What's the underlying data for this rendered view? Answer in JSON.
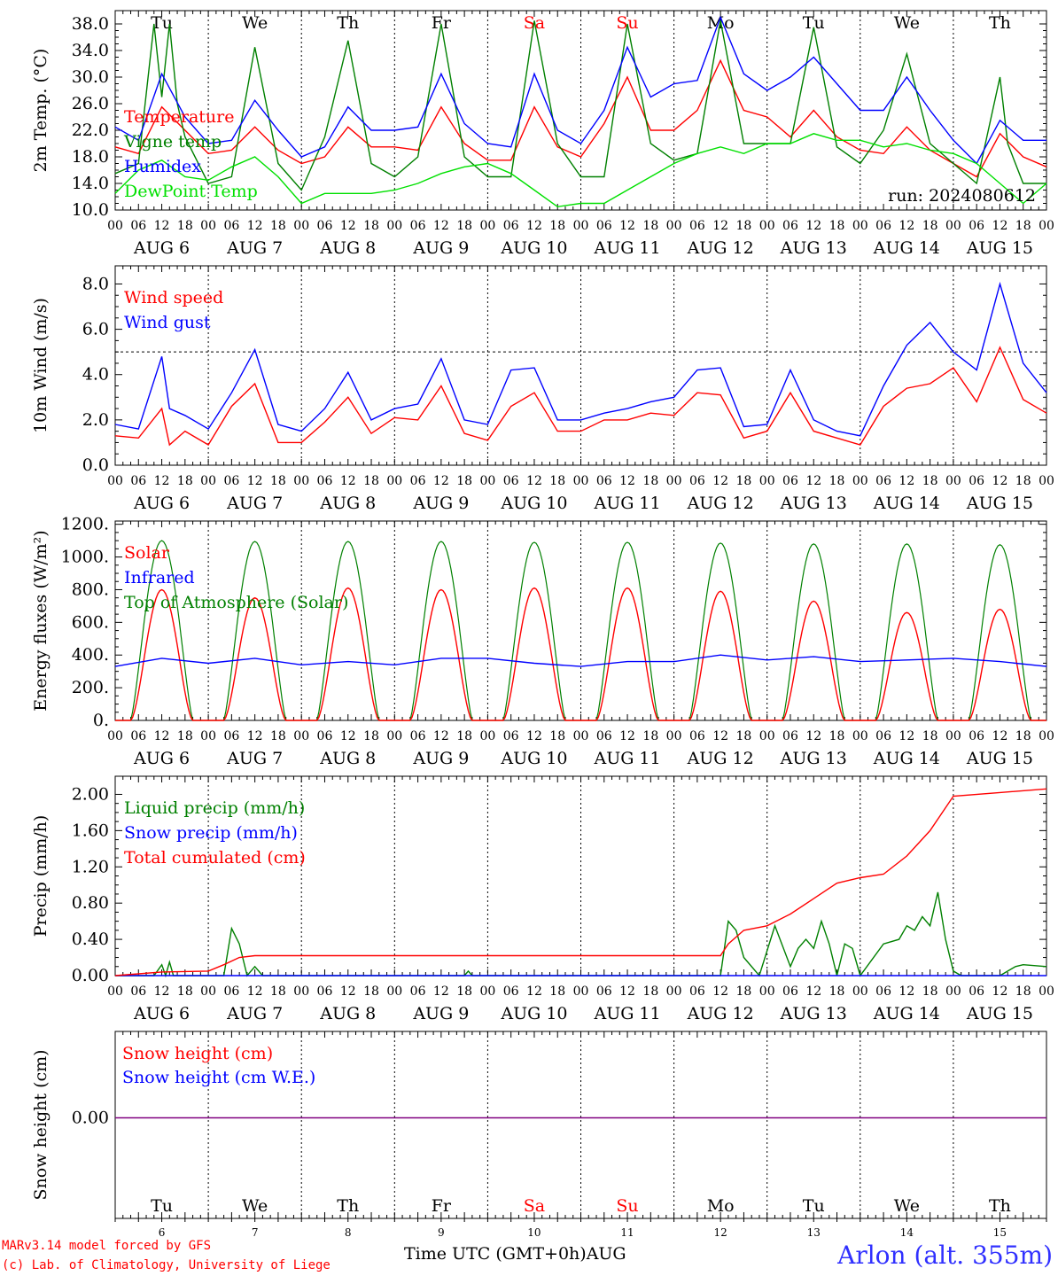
{
  "chart_data": [
    {
      "type": "line",
      "ylabel": "2m Temp. (°C)",
      "ylim": [
        10,
        40
      ],
      "yticks": [
        "10.0",
        "14.0",
        "18.0",
        "22.0",
        "26.0",
        "30.0",
        "34.0",
        "38.0"
      ],
      "legend": [
        "Temperature",
        "Vigne temp",
        "Humidex",
        "DewPoint Temp"
      ],
      "colors": [
        "#ff0000",
        "#008000",
        "#0000ff",
        "#00e000"
      ],
      "annotation": "run: 2024080612",
      "series": [
        {
          "name": "Temperature",
          "x": [
            0,
            6,
            12,
            18,
            24,
            30,
            36,
            42,
            48,
            54,
            60,
            66,
            72,
            78,
            84,
            90,
            96,
            102,
            108,
            114,
            120,
            126,
            132,
            138,
            144,
            150,
            156,
            162,
            168,
            174,
            180,
            186,
            192,
            198,
            204,
            210,
            216,
            222,
            228,
            234,
            240
          ],
          "values": [
            19.5,
            18.5,
            25.5,
            22,
            18.5,
            19,
            22.5,
            19,
            17,
            18,
            22.5,
            19.5,
            19.5,
            19,
            25.5,
            20,
            17.5,
            17.5,
            25.5,
            19.5,
            18,
            23,
            30,
            22,
            22,
            25,
            32.5,
            25,
            24,
            21,
            25,
            21,
            19,
            18.5,
            22.5,
            19,
            17,
            15,
            21.5,
            18,
            16.5
          ]
        },
        {
          "name": "Vigne temp",
          "x": [
            0,
            6,
            10,
            12,
            14,
            16,
            18,
            24,
            30,
            36,
            42,
            48,
            54,
            60,
            66,
            72,
            78,
            84,
            90,
            96,
            102,
            108,
            114,
            120,
            126,
            132,
            138,
            144,
            150,
            156,
            162,
            168,
            174,
            180,
            186,
            192,
            198,
            204,
            210,
            216,
            222,
            228,
            230,
            234,
            240
          ],
          "values": [
            15.5,
            17,
            38,
            27,
            38,
            26,
            21,
            14,
            15,
            34.5,
            17,
            13,
            21,
            35.5,
            17,
            15,
            18,
            38,
            18,
            15,
            15,
            38.5,
            20,
            15,
            15,
            38,
            20,
            17.5,
            18.5,
            38.5,
            20,
            20,
            20,
            37.5,
            19.5,
            17,
            22,
            33.5,
            20,
            17,
            14,
            30,
            20,
            14,
            14
          ]
        },
        {
          "name": "Humidex",
          "x": [
            0,
            6,
            12,
            18,
            24,
            30,
            36,
            42,
            48,
            54,
            60,
            66,
            72,
            78,
            84,
            90,
            96,
            102,
            108,
            114,
            120,
            126,
            132,
            138,
            144,
            150,
            156,
            162,
            168,
            174,
            180,
            186,
            192,
            198,
            204,
            210,
            216,
            222,
            228,
            234,
            240
          ],
          "values": [
            22.5,
            20.5,
            30.5,
            24,
            20,
            20.5,
            26.5,
            22,
            18,
            19.5,
            25.5,
            22,
            22,
            22.5,
            30.5,
            23,
            20,
            19.5,
            30.5,
            22,
            20,
            25,
            34.5,
            27,
            29,
            29.5,
            39,
            30.5,
            28,
            30,
            33,
            29,
            25,
            25,
            30,
            25,
            20.5,
            17,
            23.5,
            20.5,
            20.5
          ]
        },
        {
          "name": "DewPoint Temp",
          "x": [
            0,
            6,
            12,
            18,
            24,
            30,
            36,
            42,
            48,
            54,
            60,
            66,
            72,
            78,
            84,
            90,
            96,
            102,
            108,
            114,
            120,
            126,
            132,
            138,
            144,
            150,
            156,
            162,
            168,
            174,
            180,
            186,
            192,
            198,
            204,
            210,
            216,
            222,
            228,
            234,
            240
          ],
          "values": [
            12.5,
            16,
            17.5,
            15,
            14.5,
            16.5,
            18,
            15,
            11,
            12.5,
            12.5,
            12.5,
            13,
            14,
            15.5,
            16.5,
            17,
            15.5,
            13,
            10.5,
            11,
            11,
            13,
            15,
            17,
            18.5,
            19.5,
            18.5,
            20,
            20,
            21.5,
            20.5,
            20.5,
            19.5,
            20,
            19,
            18.5,
            17,
            14,
            11,
            14
          ]
        }
      ],
      "xlabels": [
        "00",
        "06",
        "12",
        "18"
      ],
      "dates": [
        "AUG 6",
        "AUG 7",
        "AUG 8",
        "AUG 9",
        "AUG 10",
        "AUG 11",
        "AUG 12",
        "AUG 13",
        "AUG 14",
        "AUG 15"
      ],
      "weekdays": [
        "Tu",
        "We",
        "Th",
        "Fr",
        "Sa",
        "Su",
        "Mo",
        "Tu",
        "We",
        "Th"
      ]
    },
    {
      "type": "line",
      "ylabel": "10m Wind (m/s)",
      "ylim": [
        0,
        8.8
      ],
      "yticks": [
        "0.0",
        "2.0",
        "4.0",
        "6.0",
        "8.0"
      ],
      "reference_line": 5,
      "legend": [
        "Wind speed",
        "Wind gust"
      ],
      "colors": [
        "#ff0000",
        "#0000ff"
      ],
      "series": [
        {
          "name": "Wind speed",
          "x": [
            0,
            6,
            12,
            14,
            18,
            24,
            30,
            36,
            42,
            48,
            54,
            60,
            66,
            72,
            78,
            84,
            90,
            96,
            102,
            108,
            114,
            120,
            126,
            132,
            138,
            144,
            150,
            156,
            162,
            168,
            174,
            180,
            186,
            192,
            198,
            204,
            210,
            216,
            222,
            228,
            234,
            240
          ],
          "values": [
            1.3,
            1.2,
            2.5,
            0.9,
            1.5,
            0.9,
            2.6,
            3.6,
            1.0,
            1.0,
            1.9,
            3.0,
            1.4,
            2.1,
            2.0,
            3.5,
            1.4,
            1.1,
            2.6,
            3.2,
            1.5,
            1.5,
            2.0,
            2.0,
            2.3,
            2.2,
            3.2,
            3.1,
            1.2,
            1.5,
            3.2,
            1.5,
            1.2,
            0.9,
            2.6,
            3.4,
            3.6,
            4.3,
            2.8,
            5.2,
            2.9,
            2.3
          ]
        },
        {
          "name": "Wind gust",
          "x": [
            0,
            6,
            12,
            14,
            18,
            24,
            30,
            36,
            42,
            48,
            54,
            60,
            66,
            72,
            78,
            84,
            90,
            96,
            102,
            108,
            114,
            120,
            126,
            132,
            138,
            144,
            150,
            156,
            162,
            168,
            174,
            180,
            186,
            192,
            198,
            204,
            210,
            216,
            222,
            228,
            234,
            240
          ],
          "values": [
            1.8,
            1.6,
            4.8,
            2.5,
            2.2,
            1.6,
            3.2,
            5.1,
            1.8,
            1.5,
            2.5,
            4.1,
            2.0,
            2.5,
            2.7,
            4.7,
            2.0,
            1.8,
            4.2,
            4.3,
            2.0,
            2.0,
            2.3,
            2.5,
            2.8,
            3.0,
            4.2,
            4.3,
            1.7,
            1.8,
            4.2,
            2.0,
            1.5,
            1.3,
            3.5,
            5.3,
            6.3,
            5.0,
            4.2,
            8.0,
            4.5,
            3.2
          ]
        }
      ],
      "xlabels": [
        "00",
        "06",
        "12",
        "18"
      ],
      "dates": [
        "AUG 6",
        "AUG 7",
        "AUG 8",
        "AUG 9",
        "AUG 10",
        "AUG 11",
        "AUG 12",
        "AUG 13",
        "AUG 14",
        "AUG 15"
      ]
    },
    {
      "type": "line",
      "ylabel": "Energy fluxes (W/m²)",
      "ylim": [
        0,
        1220
      ],
      "yticks": [
        "0.",
        "200.",
        "400.",
        "600.",
        "800.",
        "1000.",
        "1200."
      ],
      "legend": [
        "Solar",
        "Infrared",
        "Top of Atmosphere (Solar)"
      ],
      "colors": [
        "#ff0000",
        "#0000ff",
        "#008000"
      ],
      "toa_peaks": [
        1100,
        1095,
        1095,
        1095,
        1090,
        1090,
        1085,
        1080,
        1080,
        1075
      ],
      "solar_peaks": [
        800,
        750,
        810,
        800,
        810,
        810,
        790,
        730,
        660,
        680
      ],
      "infrared": {
        "x": [
          0,
          12,
          24,
          36,
          48,
          60,
          72,
          84,
          96,
          108,
          120,
          132,
          144,
          156,
          168,
          180,
          192,
          204,
          216,
          228,
          240
        ],
        "values": [
          330,
          380,
          350,
          380,
          340,
          360,
          340,
          380,
          380,
          350,
          330,
          360,
          360,
          400,
          370,
          390,
          360,
          370,
          380,
          360,
          330
        ]
      },
      "xlabels": [
        "00",
        "06",
        "12",
        "18"
      ],
      "dates": [
        "AUG 6",
        "AUG 7",
        "AUG 8",
        "AUG 9",
        "AUG 10",
        "AUG 11",
        "AUG 12",
        "AUG 13",
        "AUG 14",
        "AUG 15"
      ]
    },
    {
      "type": "line",
      "ylabel": "Precip (mm/h)",
      "ylim": [
        0,
        2.2
      ],
      "yticks": [
        "0.00",
        "0.40",
        "0.80",
        "1.20",
        "1.60",
        "2.00"
      ],
      "legend": [
        "Liquid precip (mm/h)",
        "Snow precip (mm/h)",
        "Total cumulated (cm)"
      ],
      "colors": [
        "#008000",
        "#0000ff",
        "#ff0000"
      ],
      "series": [
        {
          "name": "Liquid precip (mm/h)",
          "x": [
            0,
            10,
            12,
            13,
            14,
            15,
            24,
            28,
            30,
            32,
            34,
            36,
            38,
            44,
            90,
            91,
            92,
            156,
            158,
            160,
            162,
            166,
            170,
            174,
            176,
            178,
            180,
            182,
            184,
            186,
            188,
            190,
            192,
            198,
            202,
            204,
            206,
            208,
            210,
            212,
            214,
            216,
            218,
            228,
            232,
            234,
            240
          ],
          "values": [
            0,
            0,
            0.12,
            0,
            0.15,
            0,
            0,
            0,
            0.52,
            0.35,
            0,
            0.1,
            0,
            0,
            0,
            0.05,
            0,
            0,
            0.6,
            0.5,
            0.2,
            0,
            0.55,
            0.1,
            0.3,
            0.4,
            0.3,
            0.6,
            0.35,
            0,
            0.35,
            0.3,
            0,
            0.35,
            0.4,
            0.55,
            0.5,
            0.65,
            0.55,
            0.92,
            0.4,
            0.05,
            0,
            0,
            0.1,
            0.12,
            0.1
          ]
        },
        {
          "name": "Snow precip (mm/h)",
          "x": [
            0,
            240
          ],
          "values": [
            0,
            0
          ]
        },
        {
          "name": "Total cumulated (cm)",
          "x": [
            0,
            6,
            12,
            24,
            28,
            32,
            36,
            48,
            96,
            120,
            144,
            156,
            158,
            162,
            168,
            174,
            180,
            186,
            192,
            198,
            204,
            210,
            216,
            228,
            240
          ],
          "values": [
            0,
            0.02,
            0.04,
            0.05,
            0.12,
            0.2,
            0.22,
            0.22,
            0.22,
            0.22,
            0.22,
            0.22,
            0.35,
            0.5,
            0.55,
            0.68,
            0.85,
            1.02,
            1.08,
            1.12,
            1.32,
            1.6,
            1.98,
            2.02,
            2.06
          ]
        }
      ],
      "xlabels": [
        "00",
        "06",
        "12",
        "18"
      ],
      "dates": [
        "AUG 6",
        "AUG 7",
        "AUG 8",
        "AUG 9",
        "AUG 10",
        "AUG 11",
        "AUG 12",
        "AUG 13",
        "AUG 14",
        "AUG 15"
      ]
    },
    {
      "type": "line",
      "ylabel": "Snow height (cm)",
      "yticks": [
        "0.00"
      ],
      "legend": [
        "Snow height (cm)",
        "Snow height (cm W.E.)"
      ],
      "colors": [
        "#ff0000",
        "#0000ff"
      ],
      "series": [
        {
          "name": "Snow height (cm)",
          "x": [
            0,
            240
          ],
          "values": [
            0,
            0
          ]
        },
        {
          "name": "Snow height (cm W.E.)",
          "x": [
            0,
            240
          ],
          "values": [
            0,
            0
          ]
        }
      ],
      "weekdays": [
        "Tu",
        "We",
        "Th",
        "Fr",
        "Sa",
        "Su",
        "Mo",
        "Tu",
        "We",
        "Th"
      ],
      "day_numbers": [
        "6",
        "7",
        "8",
        "9",
        "10",
        "11",
        "12",
        "13",
        "14",
        "15"
      ]
    }
  ],
  "footer": {
    "model": "MARv3.14 model forced by GFS",
    "credit": "(c) Lab. of Climatology, University of Liege",
    "xaxis_label": "Time UTC (GMT+0h)AUG",
    "station": "Arlon (alt. 355m)"
  },
  "weekend_color": "#ff0000"
}
